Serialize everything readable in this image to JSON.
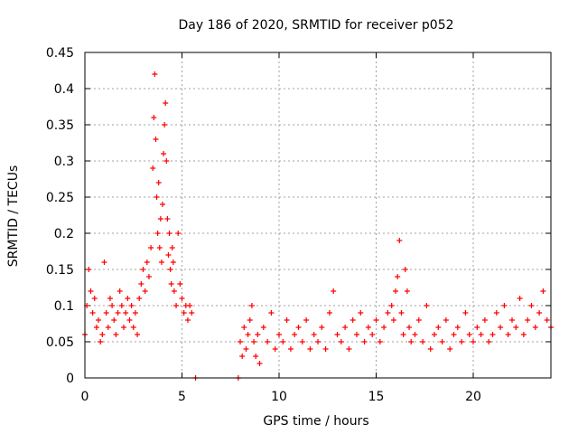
{
  "chart_data": {
    "type": "scatter",
    "title": "Day 186 of 2020, SRMTID for receiver p052",
    "xlabel": "GPS time / hours",
    "ylabel": "SRMTID / TECUs",
    "xlim": [
      0,
      24
    ],
    "ylim": [
      0,
      0.45
    ],
    "xticks": [
      0,
      5,
      10,
      15,
      20
    ],
    "xtick_labels": [
      "0",
      "5",
      "10",
      "15",
      "20"
    ],
    "yticks": [
      0,
      0.05,
      0.1,
      0.15,
      0.2,
      0.25,
      0.3,
      0.35,
      0.4,
      0.45
    ],
    "ytick_labels": [
      "0",
      "0.05",
      "0.1",
      "0.15",
      "0.2",
      "0.25",
      "0.3",
      "0.35",
      "0.4",
      "0.45"
    ],
    "grid": true,
    "marker": "+",
    "color": "#ff0000",
    "series": [
      {
        "name": "SRMTID",
        "x": [
          0.0,
          0.1,
          0.2,
          0.3,
          0.4,
          0.5,
          0.6,
          0.7,
          0.8,
          0.9,
          1.0,
          1.1,
          1.2,
          1.3,
          1.4,
          1.5,
          1.6,
          1.7,
          1.8,
          1.9,
          2.0,
          2.1,
          2.2,
          2.3,
          2.4,
          2.5,
          2.6,
          2.7,
          2.8,
          2.9,
          3.0,
          3.1,
          3.2,
          3.3,
          3.4,
          3.5,
          3.55,
          3.6,
          3.65,
          3.7,
          3.75,
          3.8,
          3.85,
          3.9,
          3.95,
          4.0,
          4.05,
          4.1,
          4.15,
          4.2,
          4.25,
          4.3,
          4.35,
          4.4,
          4.45,
          4.5,
          4.55,
          4.6,
          4.7,
          4.8,
          4.9,
          5.0,
          5.1,
          5.2,
          5.3,
          5.4,
          5.5,
          5.7,
          7.9,
          8.0,
          8.1,
          8.2,
          8.3,
          8.4,
          8.5,
          8.6,
          8.7,
          8.8,
          8.9,
          9.0,
          9.2,
          9.4,
          9.6,
          9.8,
          10.0,
          10.2,
          10.4,
          10.6,
          10.8,
          11.0,
          11.2,
          11.4,
          11.6,
          11.8,
          12.0,
          12.2,
          12.4,
          12.6,
          12.8,
          13.0,
          13.2,
          13.4,
          13.6,
          13.8,
          14.0,
          14.2,
          14.4,
          14.6,
          14.8,
          15.0,
          15.2,
          15.4,
          15.6,
          15.8,
          15.9,
          16.0,
          16.1,
          16.2,
          16.3,
          16.4,
          16.5,
          16.6,
          16.7,
          16.8,
          17.0,
          17.2,
          17.4,
          17.6,
          17.8,
          18.0,
          18.2,
          18.4,
          18.6,
          18.8,
          19.0,
          19.2,
          19.4,
          19.6,
          19.8,
          20.0,
          20.2,
          20.4,
          20.6,
          20.8,
          21.0,
          21.2,
          21.4,
          21.6,
          21.8,
          22.0,
          22.2,
          22.4,
          22.6,
          22.8,
          23.0,
          23.2,
          23.4,
          23.6,
          23.8,
          24.0
        ],
        "y": [
          0.06,
          0.1,
          0.15,
          0.12,
          0.09,
          0.11,
          0.07,
          0.08,
          0.05,
          0.06,
          0.16,
          0.09,
          0.07,
          0.11,
          0.1,
          0.08,
          0.06,
          0.09,
          0.12,
          0.1,
          0.07,
          0.09,
          0.11,
          0.08,
          0.1,
          0.07,
          0.09,
          0.06,
          0.11,
          0.13,
          0.15,
          0.12,
          0.16,
          0.14,
          0.18,
          0.29,
          0.36,
          0.42,
          0.33,
          0.25,
          0.2,
          0.27,
          0.18,
          0.22,
          0.16,
          0.24,
          0.31,
          0.35,
          0.38,
          0.3,
          0.22,
          0.17,
          0.2,
          0.15,
          0.13,
          0.18,
          0.16,
          0.12,
          0.1,
          0.2,
          0.13,
          0.11,
          0.09,
          0.1,
          0.08,
          0.1,
          0.09,
          0.0,
          0.0,
          0.05,
          0.03,
          0.07,
          0.04,
          0.06,
          0.08,
          0.1,
          0.05,
          0.03,
          0.06,
          0.02,
          0.07,
          0.05,
          0.09,
          0.04,
          0.06,
          0.05,
          0.08,
          0.04,
          0.06,
          0.07,
          0.05,
          0.08,
          0.04,
          0.06,
          0.05,
          0.07,
          0.04,
          0.09,
          0.12,
          0.06,
          0.05,
          0.07,
          0.04,
          0.08,
          0.06,
          0.09,
          0.05,
          0.07,
          0.06,
          0.08,
          0.05,
          0.07,
          0.09,
          0.1,
          0.08,
          0.12,
          0.14,
          0.19,
          0.09,
          0.06,
          0.15,
          0.12,
          0.07,
          0.05,
          0.06,
          0.08,
          0.05,
          0.1,
          0.04,
          0.06,
          0.07,
          0.05,
          0.08,
          0.04,
          0.06,
          0.07,
          0.05,
          0.09,
          0.06,
          0.05,
          0.07,
          0.06,
          0.08,
          0.05,
          0.06,
          0.09,
          0.07,
          0.1,
          0.06,
          0.08,
          0.07,
          0.11,
          0.06,
          0.08,
          0.1,
          0.07,
          0.09,
          0.12,
          0.08,
          0.07
        ]
      }
    ]
  }
}
